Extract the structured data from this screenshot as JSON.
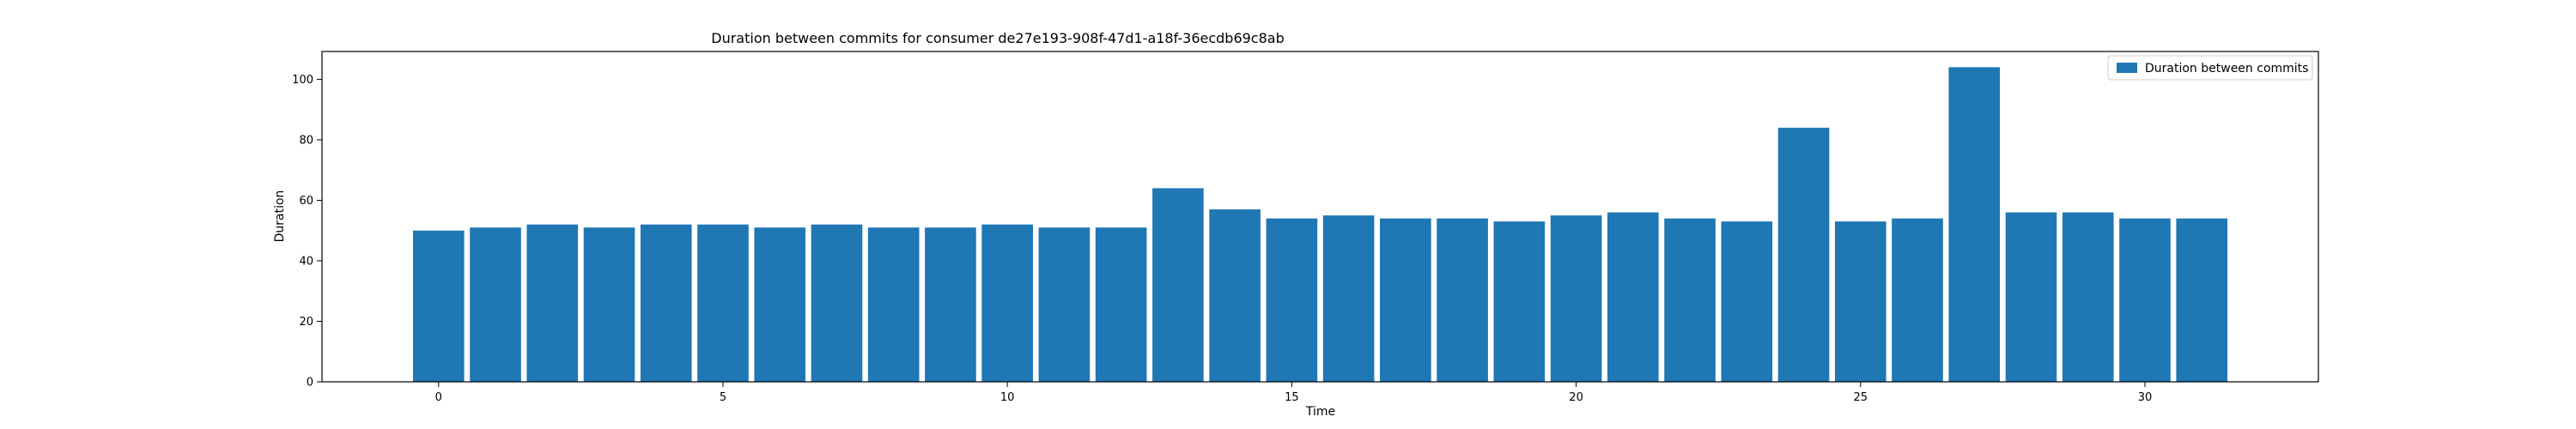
{
  "chart_data": {
    "type": "bar",
    "title": "Duration between commits for consumer de27e193-908f-47d1-a18f-36ecdb69c8ab",
    "xlabel": "Time",
    "ylabel": "Duration",
    "x": [
      0,
      1,
      2,
      3,
      4,
      5,
      6,
      7,
      8,
      9,
      10,
      11,
      12,
      13,
      14,
      15,
      16,
      17,
      18,
      19,
      20,
      21,
      22,
      23,
      24,
      25,
      26,
      27,
      28,
      29,
      30,
      31
    ],
    "series": [
      {
        "name": "Duration between commits",
        "values": [
          50,
          51,
          52,
          51,
          52,
          52,
          51,
          52,
          51,
          51,
          52,
          51,
          51,
          64,
          57,
          54,
          55,
          54,
          54,
          53,
          55,
          56,
          54,
          53,
          84,
          53,
          54,
          104,
          56,
          56,
          54,
          54
        ],
        "color": "#1f77b4"
      }
    ],
    "xlim": [
      -2.05,
      33.05
    ],
    "ylim": [
      0,
      109.2
    ],
    "xticks": [
      "0",
      "5",
      "10",
      "15",
      "20",
      "25",
      "30"
    ],
    "yticks": [
      "0",
      "20",
      "40",
      "60",
      "80",
      "100"
    ],
    "legend": "upper right",
    "grid": false
  }
}
